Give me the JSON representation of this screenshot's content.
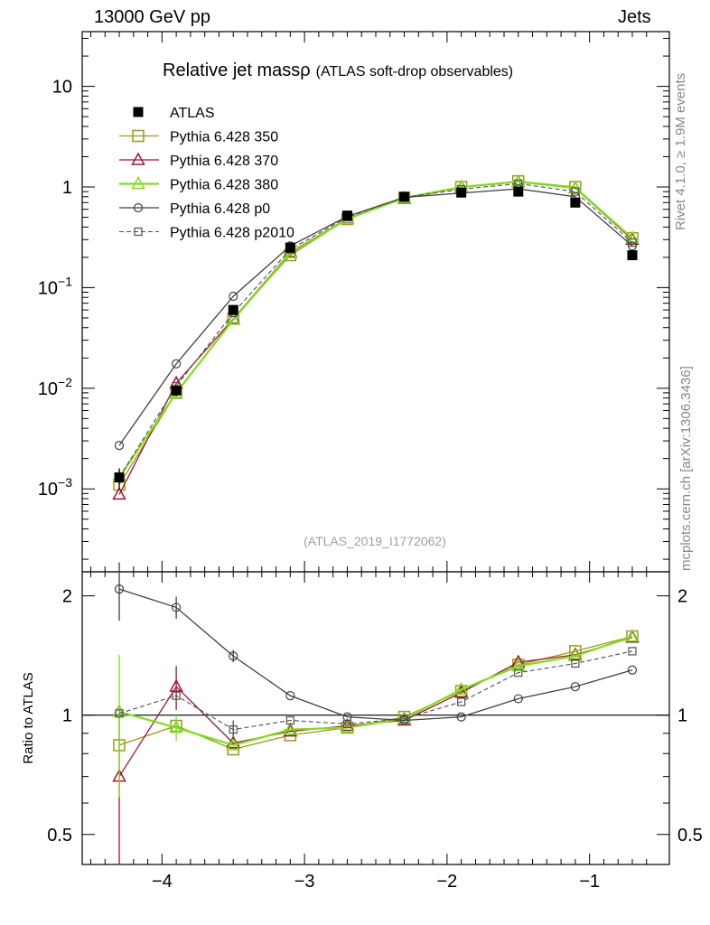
{
  "header": {
    "beam": "13000 GeV pp",
    "category": "Jets"
  },
  "side_labels": {
    "rivet": "Rivet 4.1.0, ≥ 1.9M events",
    "source": "mcplots.cern.ch [arXiv:1306.3436]"
  },
  "chart_data": {
    "type": "line",
    "title": "Relative jet mass",
    "title_symbol": "ρ",
    "subtitle": "(ATLAS soft-drop observables)",
    "analysis_id": "(ATLAS_2019_I1772062)",
    "xlabel": "",
    "ylabel": "",
    "ratio_ylabel": "Ratio to ATLAS",
    "xlim": [
      -4.56,
      -0.44
    ],
    "ylim": [
      0.00015,
      35
    ],
    "yscale": "log",
    "ratio_ylim": [
      0.42,
      2.3
    ],
    "x_ticks": [
      {
        "value": -4,
        "label": "−4"
      },
      {
        "value": -3,
        "label": "−3"
      },
      {
        "value": -2,
        "label": "−2"
      },
      {
        "value": -1,
        "label": "−1"
      }
    ],
    "y_ticks": [
      {
        "value": 0.001,
        "base": "10",
        "exp": "−3"
      },
      {
        "value": 0.01,
        "base": "10",
        "exp": "−2"
      },
      {
        "value": 0.1,
        "base": "10",
        "exp": "−1"
      },
      {
        "value": 1,
        "base": "1",
        "exp": ""
      },
      {
        "value": 10,
        "base": "10",
        "exp": ""
      }
    ],
    "ratio_y_ticks": [
      {
        "value": 0.5,
        "label": "0.5"
      },
      {
        "value": 1,
        "label": "1"
      },
      {
        "value": 2,
        "label": "2"
      }
    ],
    "x": [
      -4.3,
      -3.9,
      -3.5,
      -3.1,
      -2.7,
      -2.3,
      -1.9,
      -1.5,
      -1.1,
      -0.7
    ],
    "legend_position": "top-left",
    "data": {
      "name": "ATLAS",
      "values": [
        0.0013,
        0.0095,
        0.06,
        0.25,
        0.52,
        0.8,
        0.88,
        0.9,
        0.7,
        0.21
      ],
      "errors": [
        0.0003,
        0.0012,
        0.004,
        0.01,
        0.02,
        0.02,
        0.02,
        0.02,
        0.02,
        0.01
      ]
    },
    "series": [
      {
        "name": "Pythia 6.428 350",
        "color": "#9a9a1e",
        "marker": "square",
        "dash": "none",
        "width": 1.3,
        "values": [
          0.0011,
          0.009,
          0.049,
          0.21,
          0.48,
          0.78,
          1.0,
          1.14,
          1.0,
          0.31
        ],
        "ratio": [
          0.84,
          0.94,
          0.82,
          0.89,
          0.93,
          0.99,
          1.15,
          1.34,
          1.45,
          1.58
        ]
      },
      {
        "name": "Pythia 6.428 370",
        "color": "#a01530",
        "marker": "triangle",
        "dash": "none",
        "width": 1.3,
        "values": [
          0.00088,
          0.0112,
          0.049,
          0.225,
          0.485,
          0.77,
          0.99,
          1.12,
          0.97,
          0.3
        ],
        "ratio": [
          0.7,
          1.18,
          0.85,
          0.91,
          0.94,
          0.97,
          1.14,
          1.36,
          1.42,
          1.57
        ],
        "ratio_err": [
          0.35,
          0.15,
          0,
          0,
          0,
          0,
          0,
          0,
          0,
          0
        ]
      },
      {
        "name": "Pythia 6.428 380",
        "color": "#80dd20",
        "marker": "triangle",
        "dash": "none",
        "width": 2.2,
        "values": [
          0.0013,
          0.009,
          0.048,
          0.22,
          0.48,
          0.78,
          1.0,
          1.13,
          0.98,
          0.31
        ],
        "ratio": [
          1.02,
          0.93,
          0.84,
          0.92,
          0.93,
          0.98,
          1.16,
          1.33,
          1.41,
          1.58
        ],
        "ratio_err": [
          0.4,
          0.07,
          0,
          0,
          0,
          0,
          0,
          0,
          0,
          0
        ]
      },
      {
        "name": "Pythia 6.428 p0",
        "color": "#404040",
        "marker": "circle",
        "dash": "none",
        "width": 1.3,
        "values": [
          0.0027,
          0.0175,
          0.082,
          0.26,
          0.51,
          0.79,
          0.87,
          0.96,
          0.8,
          0.26
        ],
        "ratio": [
          2.08,
          1.87,
          1.41,
          1.12,
          0.99,
          0.97,
          0.99,
          1.1,
          1.18,
          1.3
        ],
        "ratio_err": [
          0.35,
          0.12,
          0.05,
          0,
          0,
          0,
          0,
          0,
          0,
          0
        ]
      },
      {
        "name": "Pythia 6.428 p2010",
        "color": "#505050",
        "marker": "square-small",
        "dash": "5,3",
        "width": 1.1,
        "values": [
          0.0013,
          0.0105,
          0.056,
          0.24,
          0.5,
          0.79,
          0.95,
          1.08,
          0.9,
          0.28
        ],
        "ratio": [
          1.01,
          1.12,
          0.92,
          0.97,
          0.95,
          0.98,
          1.08,
          1.28,
          1.35,
          1.45
        ],
        "ratio_err": [
          0,
          0,
          0.05,
          0,
          0,
          0,
          0,
          0,
          0,
          0
        ]
      }
    ]
  }
}
